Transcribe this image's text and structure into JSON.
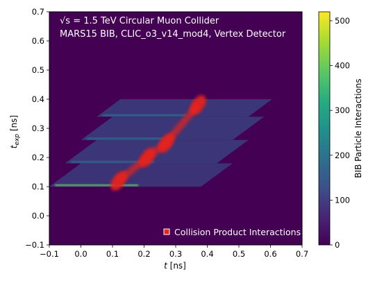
{
  "chart_data": {
    "type": "heatmap",
    "title": "",
    "xlabel": "t [ns]",
    "ylabel": "t_exp [ns]",
    "xlim": [
      -0.1,
      0.7
    ],
    "ylim": [
      -0.1,
      0.7
    ],
    "xticks": [
      -0.1,
      0.0,
      0.1,
      0.2,
      0.3,
      0.4,
      0.5,
      0.6,
      0.7
    ],
    "yticks": [
      -0.1,
      0.0,
      0.1,
      0.2,
      0.3,
      0.4,
      0.5,
      0.6,
      0.7
    ],
    "xtick_labels": [
      "−0.1",
      "0.0",
      "0.1",
      "0.2",
      "0.3",
      "0.4",
      "0.5",
      "0.6",
      "0.7"
    ],
    "ytick_labels": [
      "−0.1",
      "0.0",
      "0.1",
      "0.2",
      "0.3",
      "0.4",
      "0.5",
      "0.6",
      "0.7"
    ],
    "annotation_line1": "√s = 1.5 TeV Circular Muon Collider",
    "annotation_line2": "MARS15 BIB, CLIC_o3_v14_mod4, Vertex Detector",
    "legend": [
      {
        "label": "Collision Product Interactions",
        "color": "#e8231b"
      }
    ],
    "colorbar": {
      "label": "BIB Particle Interactions",
      "min": 0,
      "max": 520,
      "ticks": [
        0,
        100,
        200,
        300,
        400,
        500
      ],
      "colormap": "viridis"
    },
    "bib_bands": [
      {
        "t_exp_min": 0.1,
        "t_exp_max": 0.18,
        "t_min": -0.1,
        "t_max": 0.38
      },
      {
        "t_exp_min": 0.18,
        "t_exp_max": 0.26,
        "t_min": -0.05,
        "t_max": 0.43
      },
      {
        "t_exp_min": 0.26,
        "t_exp_max": 0.34,
        "t_min": 0.0,
        "t_max": 0.48
      },
      {
        "t_exp_min": 0.34,
        "t_exp_max": 0.4,
        "t_min": 0.05,
        "t_max": 0.53
      }
    ],
    "collision_clusters": [
      {
        "t": 0.12,
        "t_exp": 0.12
      },
      {
        "t": 0.21,
        "t_exp": 0.2
      },
      {
        "t": 0.27,
        "t_exp": 0.25
      },
      {
        "t": 0.37,
        "t_exp": 0.38
      }
    ],
    "background_color": "#440154"
  }
}
